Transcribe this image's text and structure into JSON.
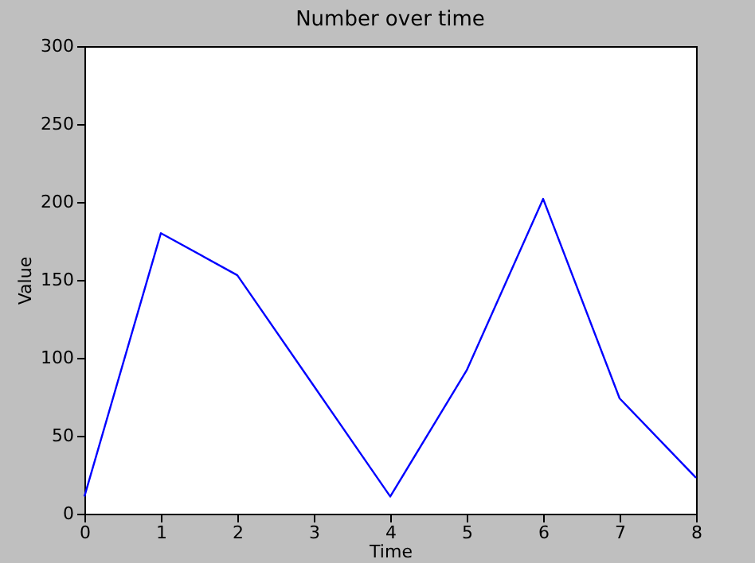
{
  "chart_data": {
    "type": "line",
    "title": "Number over time",
    "xlabel": "Time",
    "ylabel": "Value",
    "x": [
      0,
      1,
      2,
      3,
      4,
      5,
      6,
      7,
      8
    ],
    "series": [
      {
        "color": "#0000ff",
        "values": [
          11,
          180,
          153,
          82,
          11,
          92,
          202,
          74,
          23
        ]
      }
    ],
    "xlim": [
      0,
      8
    ],
    "xticks": [
      0,
      1,
      2,
      3,
      4,
      5,
      6,
      7,
      8
    ],
    "ylim": [
      0,
      300
    ],
    "yticks": [
      0,
      50,
      100,
      150,
      200,
      250,
      300
    ],
    "grid": false,
    "marker": "none",
    "line_style": "solid"
  }
}
